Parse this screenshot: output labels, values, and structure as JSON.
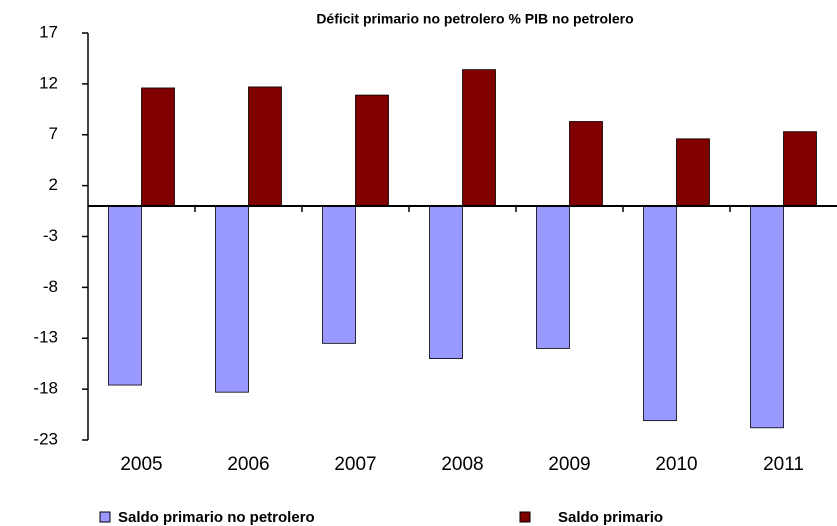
{
  "chart_data": {
    "type": "bar",
    "title": "Déficit primario no petrolero % PIB no petrolero",
    "categories": [
      "2005",
      "2006",
      "2007",
      "2008",
      "2009",
      "2010",
      "2011"
    ],
    "series": [
      {
        "name": "Saldo primario no petrolero",
        "color": "#9999ff",
        "values": [
          -17.6,
          -18.3,
          -13.5,
          -15.0,
          -14.0,
          -21.1,
          -21.8
        ]
      },
      {
        "name": "Saldo primario",
        "color": "#800000",
        "values": [
          11.6,
          11.7,
          10.9,
          13.4,
          8.3,
          6.6,
          7.3
        ]
      }
    ],
    "ylim": [
      -23,
      17
    ],
    "yticks": [
      -23,
      -18,
      -13,
      -8,
      -3,
      2,
      7,
      12,
      17
    ],
    "legend": "bottom"
  }
}
